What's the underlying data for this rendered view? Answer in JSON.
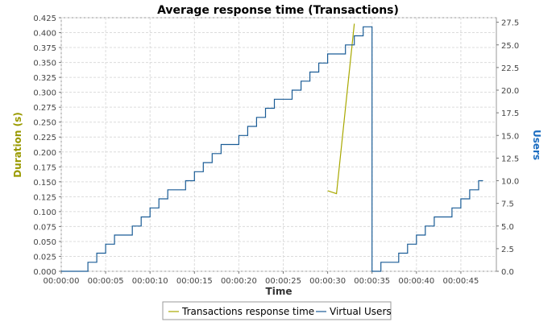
{
  "chart_data": {
    "type": "line",
    "title": "Average response time (Transactions)",
    "xlabel": "Time",
    "ylabel_left": "Duration (s)",
    "ylabel_right": "Users",
    "x_ticks": [
      "00:00:00",
      "00:00:05",
      "00:00:10",
      "00:00:15",
      "00:00:20",
      "00:00:25",
      "00:00:30",
      "00:00:35",
      "00:00:40",
      "00:00:45"
    ],
    "xlim_seconds": [
      0,
      49
    ],
    "ylim_left": [
      0,
      0.425
    ],
    "ylim_right": [
      0,
      28
    ],
    "left_ticks": [
      "0.000",
      "0.025",
      "0.050",
      "0.075",
      "0.100",
      "0.125",
      "0.150",
      "0.175",
      "0.200",
      "0.225",
      "0.250",
      "0.275",
      "0.300",
      "0.325",
      "0.350",
      "0.375",
      "0.400",
      "0.425"
    ],
    "right_ticks": [
      "0.0",
      "2.5",
      "5.0",
      "7.5",
      "10.0",
      "12.5",
      "15.0",
      "17.5",
      "20.0",
      "22.5",
      "25.0",
      "27.5"
    ],
    "grid": true,
    "legend_position": "bottom",
    "colors": {
      "transactions": "#a8a800",
      "users": "#1a5c96",
      "left_axis_label": "#9a9a00",
      "right_axis_label": "#1a6cc0"
    },
    "series": [
      {
        "name": "Transactions response time",
        "axis": "left",
        "x": [
          "00:00:30",
          "00:00:31",
          "00:00:33"
        ],
        "y": [
          0.135,
          0.13,
          0.415
        ]
      },
      {
        "name": "Virtual Users",
        "axis": "right",
        "step": true,
        "x": [
          "00:00:00",
          "00:00:03",
          "00:00:04",
          "00:00:05",
          "00:00:06",
          "00:00:08",
          "00:00:09",
          "00:00:10",
          "00:00:11",
          "00:00:12",
          "00:00:14",
          "00:00:15",
          "00:00:16",
          "00:00:17",
          "00:00:18",
          "00:00:20",
          "00:00:21",
          "00:00:22",
          "00:00:23",
          "00:00:24",
          "00:00:26",
          "00:00:27",
          "00:00:28",
          "00:00:29",
          "00:00:30",
          "00:00:32",
          "00:00:33",
          "00:00:34",
          "00:00:35",
          "00:00:36",
          "00:00:38",
          "00:00:39",
          "00:00:40",
          "00:00:41",
          "00:00:42",
          "00:00:44",
          "00:00:45",
          "00:00:46",
          "00:00:47"
        ],
        "y": [
          0,
          1,
          2,
          3,
          4,
          5,
          6,
          7,
          8,
          9,
          10,
          11,
          12,
          13,
          14,
          15,
          16,
          17,
          18,
          19,
          20,
          21,
          22,
          23,
          24,
          25,
          26,
          27,
          0,
          1,
          2,
          3,
          4,
          5,
          6,
          7,
          8,
          9,
          10
        ]
      }
    ]
  },
  "legend": {
    "transactions_label": "Transactions response time",
    "users_label": "Virtual Users"
  }
}
